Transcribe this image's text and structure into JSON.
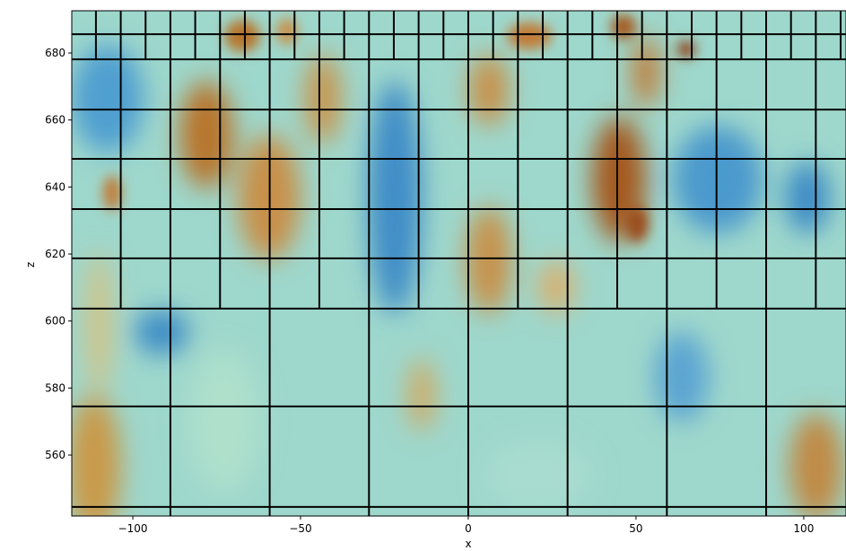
{
  "chart_data": {
    "type": "heatmap",
    "xlabel": "x",
    "ylabel": "z",
    "xlim": [
      -118.2,
      112.6
    ],
    "ylim": [
      541.8,
      692.6
    ],
    "xticks": [
      {
        "value": -100,
        "label": "−100"
      },
      {
        "value": -50,
        "label": "−50"
      },
      0,
      50,
      100
    ],
    "yticks": [
      560,
      580,
      600,
      620,
      640,
      660,
      680
    ],
    "mesh": {
      "color": "#000000",
      "z": [
        544.5,
        574.5,
        603.7,
        618.7,
        633.4,
        648.4,
        663.1,
        678.1,
        685.6
      ],
      "x_segments": [
        {
          "z": [
            541.8,
            603.7
          ],
          "x": [
            -88.8,
            -59.2,
            -29.6,
            0,
            29.6,
            59.2,
            88.8
          ]
        },
        {
          "z": [
            603.7,
            678.1
          ],
          "x": [
            -103.6,
            -88.8,
            -74,
            -59.2,
            -44.4,
            -29.6,
            -14.8,
            0,
            14.8,
            29.6,
            44.4,
            59.2,
            74,
            88.8,
            103.6
          ]
        },
        {
          "z": [
            678.1,
            692.6
          ],
          "x": [
            -111,
            -103.6,
            -96.2,
            -88.8,
            -81.4,
            -74,
            -66.6,
            -59.2,
            -51.8,
            -44.4,
            -37,
            -29.6,
            -22.2,
            -14.8,
            -7.4,
            0,
            7.4,
            14.8,
            22.2,
            29.6,
            37,
            44.4,
            51.8,
            59.2,
            66.6,
            74,
            81.4,
            88.8,
            96.2,
            103.6,
            111
          ]
        }
      ]
    }
  }
}
